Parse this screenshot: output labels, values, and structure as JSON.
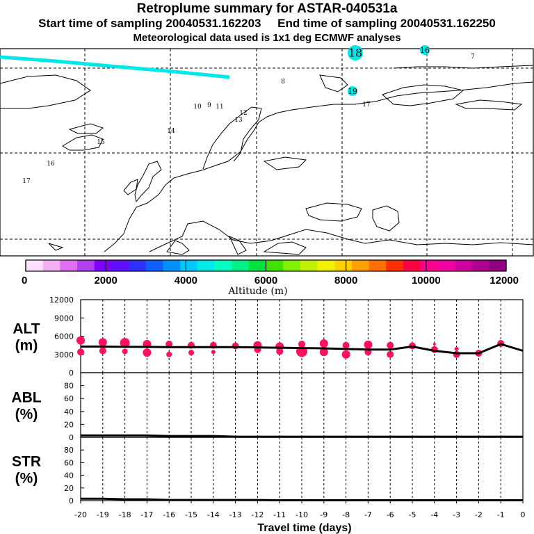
{
  "header": {
    "title": "Retroplume summary for ASTAR-040531a",
    "start_label": "Start time of sampling 20040531.162203",
    "end_label": "End time of sampling 20040531.162250",
    "met_label": "Meteorological data used is 1x1 deg ECMWF analyses"
  },
  "colors": {
    "plume": "#00e8e8",
    "markers": "#ff1060",
    "line": "#000000",
    "colorbar": [
      "#ffe0ff",
      "#f4b0f4",
      "#e070f0",
      "#b040f0",
      "#8000ff",
      "#6010ff",
      "#3030ff",
      "#1060ff",
      "#0090ff",
      "#00c8ff",
      "#00e8e8",
      "#00ffc0",
      "#00f088",
      "#00e040",
      "#40e000",
      "#80f000",
      "#c0f000",
      "#f0f000",
      "#ffd000",
      "#ffa000",
      "#ff7000",
      "#ff3000",
      "#ff0040",
      "#ff0090",
      "#f000a0",
      "#d000a0",
      "#b00090",
      "#900080"
    ]
  },
  "map": {
    "labels": [
      {
        "text": "18",
        "size": 4
      },
      {
        "text": "16",
        "size": 2
      },
      {
        "text": "7",
        "size": 1
      },
      {
        "text": "8",
        "size": 1
      },
      {
        "text": "19",
        "size": 2
      },
      {
        "text": "17",
        "size": 1
      },
      {
        "text": "10",
        "size": 1
      },
      {
        "text": "9",
        "size": 1
      },
      {
        "text": "11",
        "size": 1
      },
      {
        "text": "12",
        "size": 1
      },
      {
        "text": "13",
        "size": 1
      },
      {
        "text": "14",
        "size": 1
      },
      {
        "text": "15",
        "size": 1
      },
      {
        "text": "16",
        "size": 1
      },
      {
        "text": "17",
        "size": 1
      }
    ],
    "colorbar_ticks": [
      "0",
      "2000",
      "4000",
      "6000",
      "8000",
      "10000",
      "12000"
    ],
    "colorbar_label": "Altitude (m)"
  },
  "chart_data": [
    {
      "type": "line",
      "title": "ALT (m)",
      "ylabel_line1": "ALT",
      "ylabel_line2": "(m)",
      "x": [
        -20,
        -19,
        -18,
        -17,
        -16,
        -15,
        -14,
        -13,
        -12,
        -11,
        -10,
        -9,
        -8,
        -7,
        -6,
        -5,
        -4,
        -3,
        -2,
        -1,
        0
      ],
      "y": [
        4300,
        4300,
        4250,
        4250,
        4200,
        4200,
        4200,
        4200,
        4150,
        4100,
        4050,
        4000,
        3900,
        3800,
        3800,
        4300,
        3600,
        3200,
        3200,
        4700,
        3600
      ],
      "ylim": [
        0,
        12000
      ],
      "yticks": [
        "0",
        "3000",
        "6000",
        "9000",
        "12000"
      ],
      "markers": [
        {
          "x": -20,
          "y": 5300,
          "r": 6
        },
        {
          "x": -20,
          "y": 3400,
          "r": 5
        },
        {
          "x": -19,
          "y": 5000,
          "r": 6
        },
        {
          "x": -19,
          "y": 3600,
          "r": 5
        },
        {
          "x": -18,
          "y": 4900,
          "r": 7
        },
        {
          "x": -18,
          "y": 3500,
          "r": 4
        },
        {
          "x": -17,
          "y": 4700,
          "r": 6
        },
        {
          "x": -17,
          "y": 3300,
          "r": 6
        },
        {
          "x": -16,
          "y": 4700,
          "r": 5
        },
        {
          "x": -16,
          "y": 3000,
          "r": 4
        },
        {
          "x": -15,
          "y": 4500,
          "r": 5
        },
        {
          "x": -15,
          "y": 3300,
          "r": 4
        },
        {
          "x": -14,
          "y": 4500,
          "r": 5
        },
        {
          "x": -14,
          "y": 3400,
          "r": 3
        },
        {
          "x": -13,
          "y": 4400,
          "r": 5
        },
        {
          "x": -12,
          "y": 4500,
          "r": 6
        },
        {
          "x": -12,
          "y": 3800,
          "r": 5
        },
        {
          "x": -11,
          "y": 4300,
          "r": 6
        },
        {
          "x": -11,
          "y": 3500,
          "r": 5
        },
        {
          "x": -10,
          "y": 4700,
          "r": 5
        },
        {
          "x": -10,
          "y": 3500,
          "r": 8
        },
        {
          "x": -9,
          "y": 4800,
          "r": 6
        },
        {
          "x": -9,
          "y": 3400,
          "r": 6
        },
        {
          "x": -8,
          "y": 4500,
          "r": 5
        },
        {
          "x": -8,
          "y": 3000,
          "r": 6
        },
        {
          "x": -7,
          "y": 4600,
          "r": 6
        },
        {
          "x": -7,
          "y": 3400,
          "r": 5
        },
        {
          "x": -6,
          "y": 4500,
          "r": 5
        },
        {
          "x": -6,
          "y": 3000,
          "r": 5
        },
        {
          "x": -5,
          "y": 4400,
          "r": 5
        },
        {
          "x": -4,
          "y": 3800,
          "r": 5
        },
        {
          "x": -4,
          "y": 4700,
          "r": 2
        },
        {
          "x": -3,
          "y": 3000,
          "r": 5
        },
        {
          "x": -3,
          "y": 3900,
          "r": 3
        },
        {
          "x": -2,
          "y": 3200,
          "r": 5
        },
        {
          "x": -1,
          "y": 4800,
          "r": 5
        }
      ]
    },
    {
      "type": "line",
      "title": "ABL (%)",
      "ylabel_line1": "ABL",
      "ylabel_line2": "(%)",
      "x": [
        -20,
        -19,
        -18,
        -17,
        -16,
        -15,
        -14,
        -13,
        -12,
        -11,
        -10,
        -9,
        -8,
        -7,
        -6,
        -5,
        -4,
        -3,
        -2,
        -1,
        0
      ],
      "y": [
        3,
        3,
        3,
        3,
        2,
        2,
        2,
        1,
        1,
        1,
        1,
        1,
        1,
        1,
        1,
        1,
        1,
        1,
        1,
        1,
        1
      ],
      "ylim": [
        0,
        100
      ],
      "yticks": [
        "0",
        "20",
        "40",
        "60",
        "80"
      ]
    },
    {
      "type": "line",
      "title": "STR (%)",
      "ylabel_line1": "STR",
      "ylabel_line2": "(%)",
      "x": [
        -20,
        -19,
        -18,
        -17,
        -16,
        -15,
        -14,
        -13,
        -12,
        -11,
        -10,
        -9,
        -8,
        -7,
        -6,
        -5,
        -4,
        -3,
        -2,
        -1,
        0
      ],
      "y": [
        3,
        3,
        2,
        2,
        1,
        1,
        1,
        1,
        1,
        0.5,
        0.5,
        0.5,
        0.5,
        0.5,
        0.5,
        0.5,
        0.5,
        0.5,
        0.5,
        0.5,
        0.5
      ],
      "ylim": [
        0,
        100
      ],
      "yticks": [
        "0",
        "20",
        "40",
        "60",
        "80"
      ]
    }
  ],
  "xaxis": {
    "tick_labels": [
      "-20",
      "-19",
      "-18",
      "-17",
      "-16",
      "-15",
      "-14",
      "-13",
      "-12",
      "-11",
      "-10",
      "-9",
      "-8",
      "-7",
      "-6",
      "-5",
      "-4",
      "-3",
      "-2",
      "-1",
      "0"
    ],
    "label": "Travel time (days)"
  }
}
